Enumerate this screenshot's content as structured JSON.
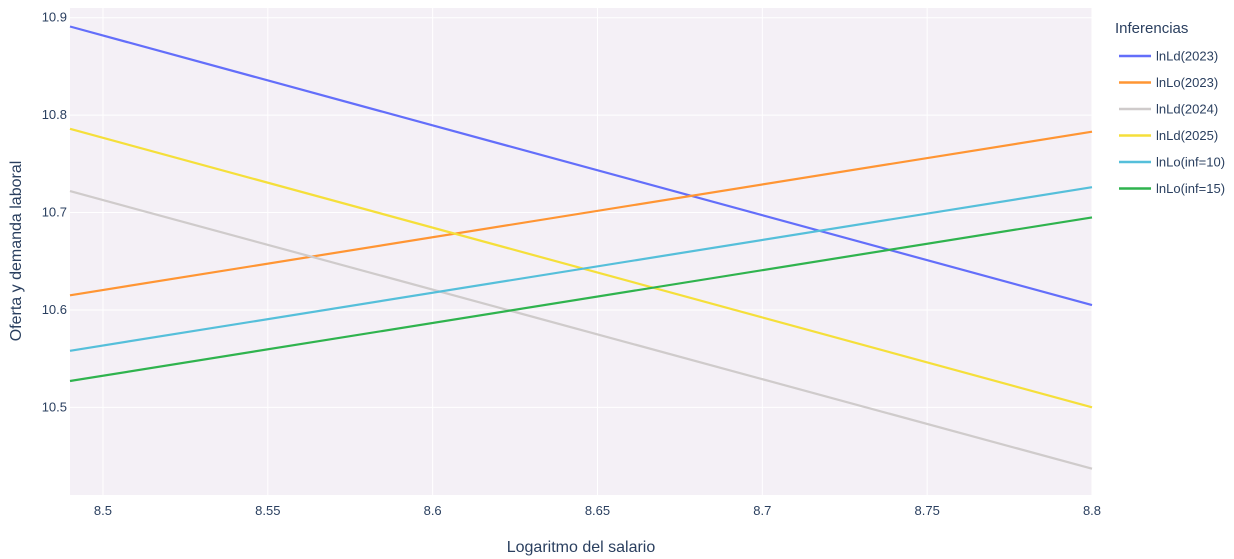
{
  "chart_data": {
    "type": "line",
    "title": "",
    "xlabel": "Logaritmo del salario",
    "ylabel": "Oferta y demanda laboral",
    "xlim": [
      8.49,
      8.8
    ],
    "ylim": [
      10.41,
      10.91
    ],
    "x_ticks": [
      8.5,
      8.55,
      8.6,
      8.65,
      8.7,
      8.75,
      8.8
    ],
    "x_tick_labels": [
      "8.5",
      "8.55",
      "8.6",
      "8.65",
      "8.7",
      "8.75",
      "8.8"
    ],
    "y_ticks": [
      10.5,
      10.6,
      10.7,
      10.8,
      10.9
    ],
    "y_tick_labels": [
      "10.5",
      "10.6",
      "10.7",
      "10.8",
      "10.9"
    ],
    "grid": true,
    "legend_title": "Inferencias",
    "legend_position": "right",
    "plot_background": "#f4f0f6",
    "series": [
      {
        "name": "lnLd(2023)",
        "color": "#636efa",
        "x": [
          8.49,
          8.8
        ],
        "y": [
          10.891,
          10.605
        ]
      },
      {
        "name": "lnLo(2023)",
        "color": "#ff9533",
        "x": [
          8.49,
          8.8
        ],
        "y": [
          10.615,
          10.783
        ]
      },
      {
        "name": "lnLd(2024)",
        "color": "#cfcbcb",
        "x": [
          8.49,
          8.8
        ],
        "y": [
          10.722,
          10.437
        ]
      },
      {
        "name": "lnLd(2025)",
        "color": "#f5df3a",
        "x": [
          8.49,
          8.8
        ],
        "y": [
          10.786,
          10.5
        ]
      },
      {
        "name": "lnLo(inf=10)",
        "color": "#55bfda",
        "x": [
          8.49,
          8.8
        ],
        "y": [
          10.558,
          10.726
        ]
      },
      {
        "name": "lnLo(inf=15)",
        "color": "#2fb34e",
        "x": [
          8.49,
          8.8
        ],
        "y": [
          10.527,
          10.695
        ]
      }
    ]
  }
}
